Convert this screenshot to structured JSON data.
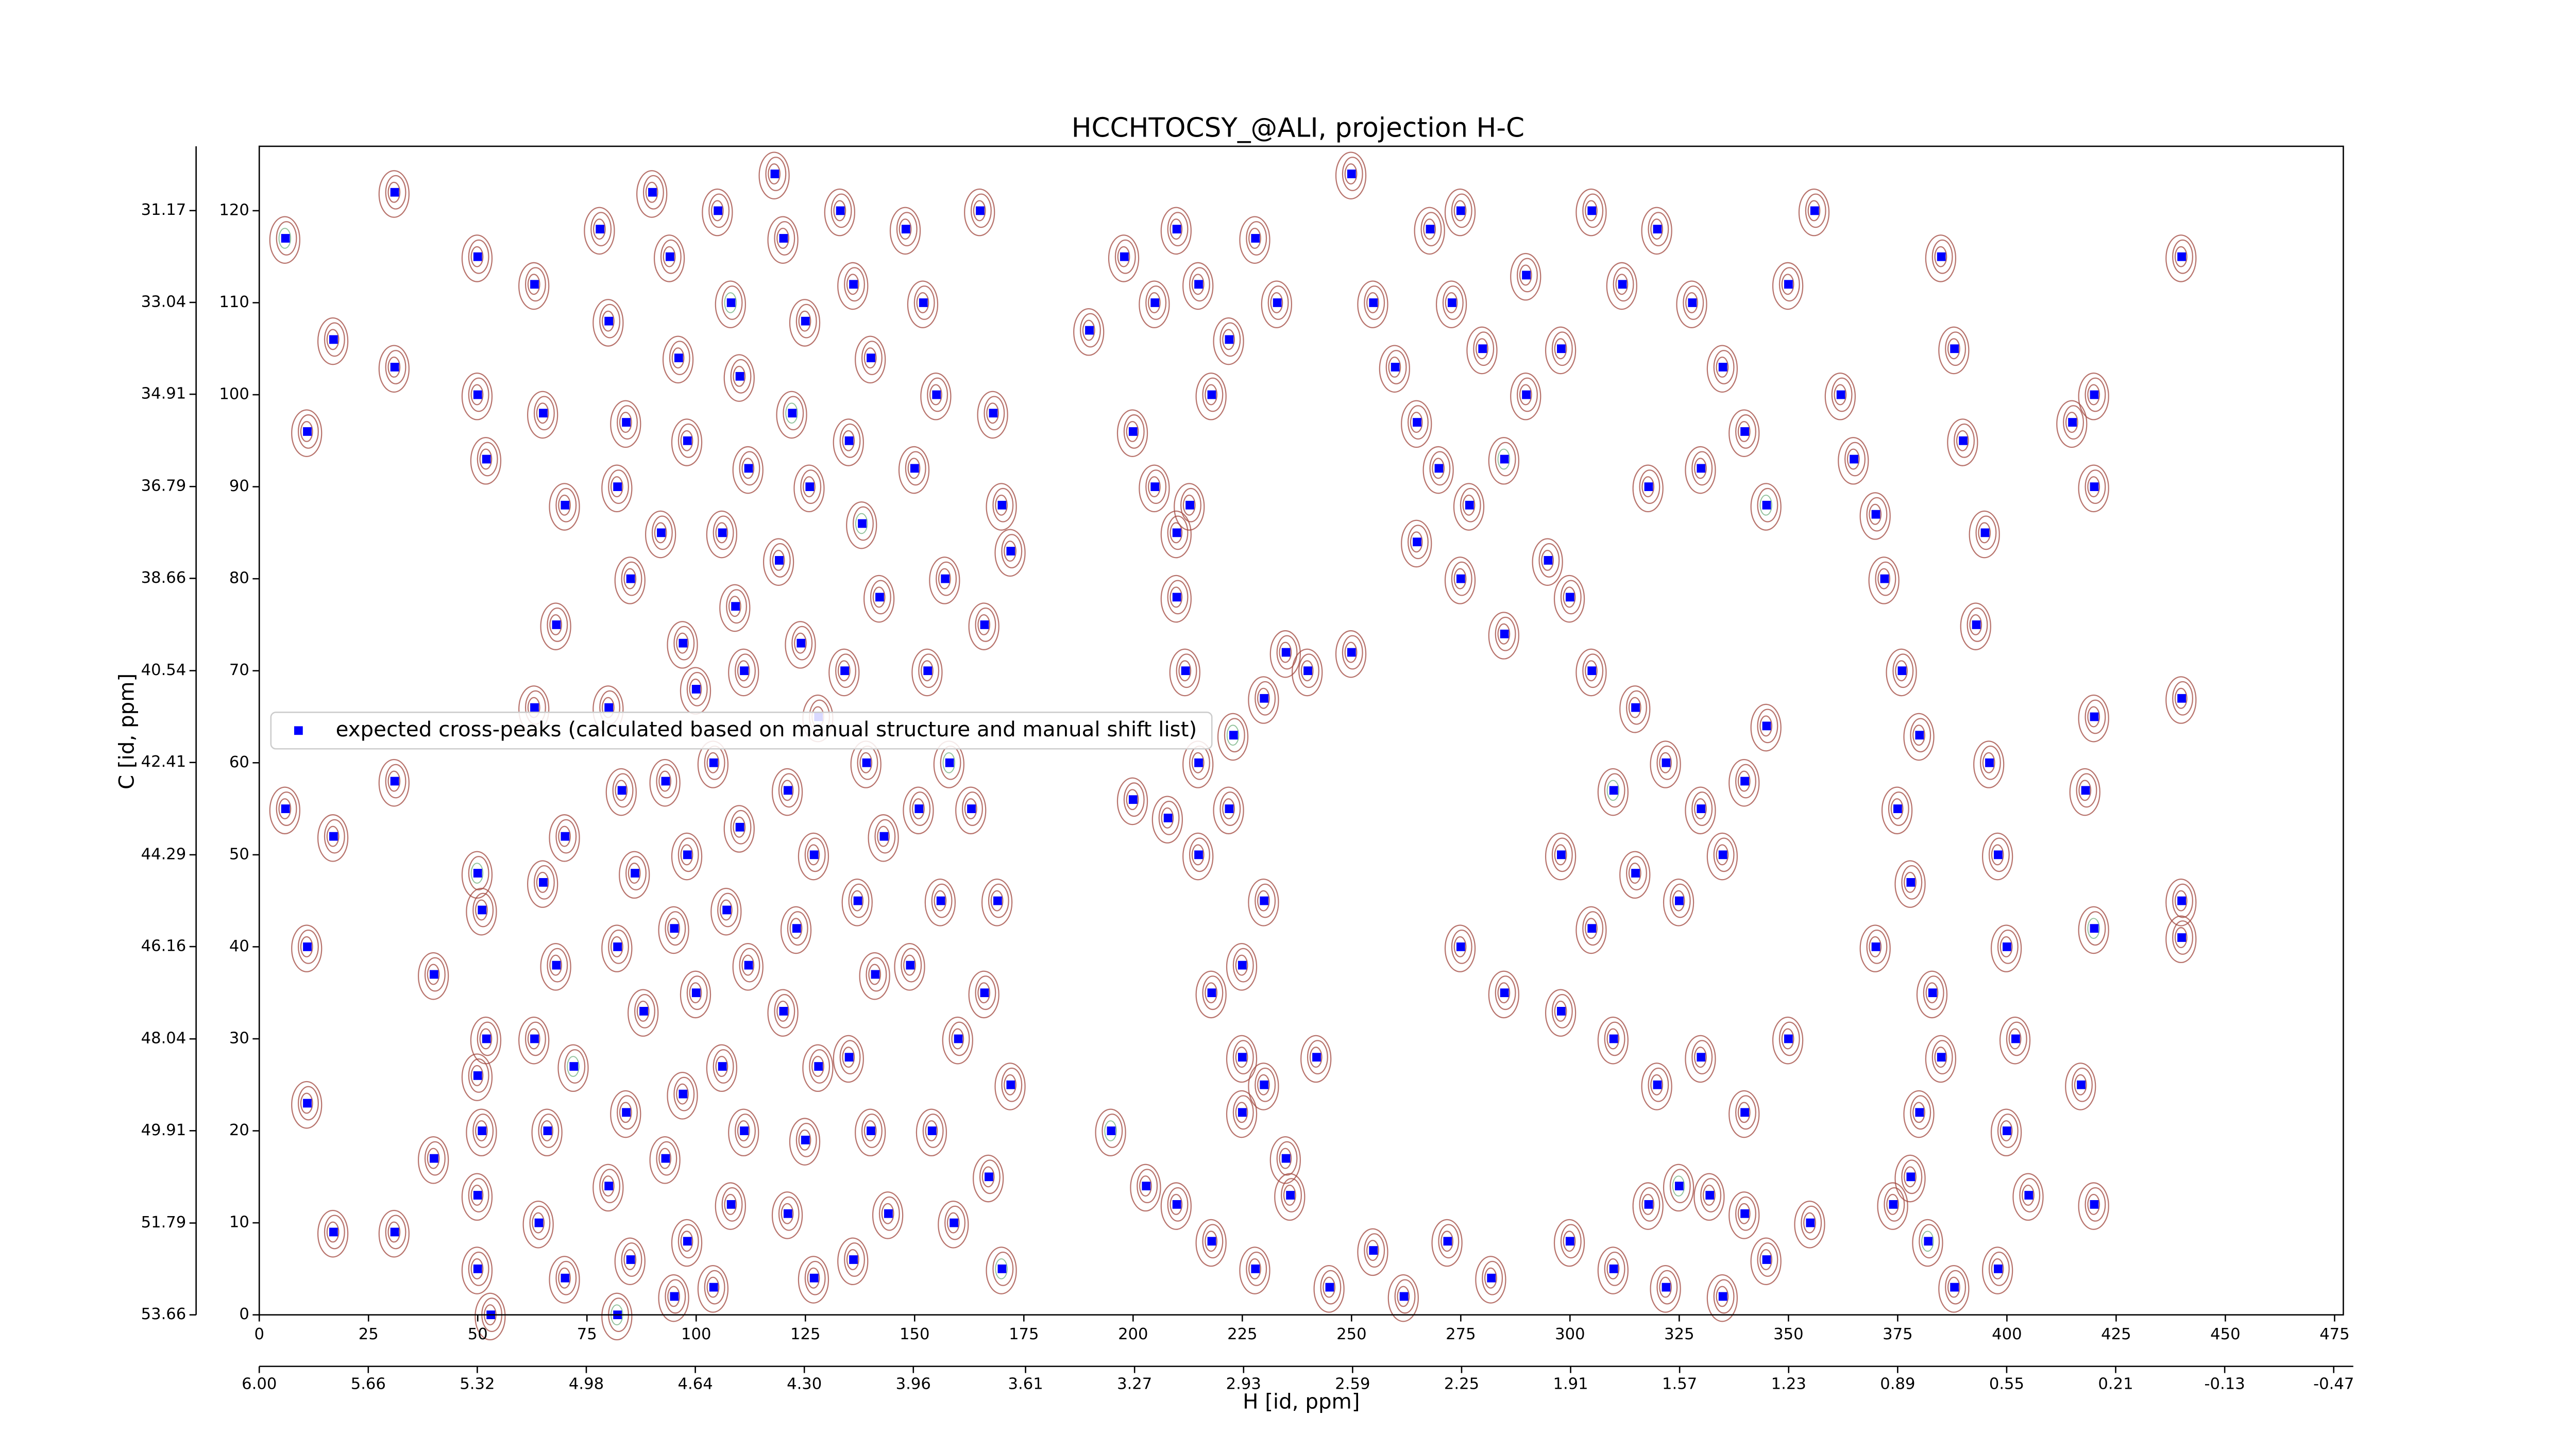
{
  "chart_data": {
    "type": "scatter",
    "title": "HCCHTOCSY_@ALI, projection H-C",
    "x_label": "H [id, ppm]",
    "y_label": "C [id, ppm]",
    "xlim": [
      0,
      477
    ],
    "xticks": [
      0,
      25,
      50,
      75,
      100,
      125,
      150,
      175,
      200,
      225,
      250,
      275,
      300,
      325,
      350,
      375,
      400,
      425,
      450,
      475
    ],
    "x2lim": [
      6.0,
      -0.5
    ],
    "x2ticks": [
      {
        "value": 6.0,
        "label": "6.00"
      },
      5.66,
      5.32,
      4.98,
      4.64,
      {
        "value": 4.3,
        "label": "4.30"
      },
      3.96,
      3.61,
      3.27,
      2.93,
      2.59,
      2.25,
      1.91,
      1.57,
      1.23,
      0.89,
      0.55,
      0.21,
      -0.13,
      -0.47
    ],
    "ylim": [
      0,
      127
    ],
    "yticks": [
      0,
      10,
      20,
      30,
      40,
      50,
      60,
      70,
      80,
      90,
      100,
      110,
      120
    ],
    "y2lim": [
      53.66,
      29.86
    ],
    "y2ticks": [
      53.66,
      51.79,
      49.91,
      48.04,
      46.16,
      44.29,
      42.41,
      40.54,
      38.66,
      36.79,
      34.91,
      33.04,
      31.17
    ],
    "legend": "center left",
    "series": [
      {
        "name": "expected cross-peaks (calculated based on manual structure and manual shift list)",
        "color": "#0000ff",
        "x": [
          6,
          17,
          31,
          11,
          31,
          6,
          17,
          11,
          40,
          11,
          17,
          31,
          31,
          40,
          50,
          50,
          52,
          50,
          51,
          52,
          50,
          51,
          50,
          50,
          53,
          63,
          65,
          70,
          68,
          63,
          70,
          65,
          68,
          63,
          72,
          66,
          64,
          70,
          78,
          80,
          84,
          82,
          85,
          80,
          83,
          86,
          82,
          88,
          84,
          80,
          85,
          82,
          90,
          94,
          96,
          98,
          92,
          97,
          100,
          93,
          98,
          95,
          100,
          97,
          93,
          98,
          95,
          105,
          108,
          110,
          112,
          106,
          109,
          111,
          104,
          110,
          107,
          112,
          106,
          111,
          108,
          104,
          118,
          120,
          125,
          122,
          126,
          119,
          124,
          128,
          121,
          127,
          123,
          120,
          128,
          125,
          121,
          127,
          133,
          136,
          140,
          135,
          138,
          142,
          134,
          139,
          143,
          137,
          141,
          135,
          140,
          144,
          136,
          148,
          152,
          155,
          150,
          157,
          153,
          158,
          151,
          156,
          149,
          160,
          154,
          159,
          165,
          168,
          170,
          172,
          166,
          163,
          169,
          166,
          172,
          167,
          170,
          190,
          200,
          205,
          210,
          213,
          198,
          205,
          210,
          215,
          222,
          228,
          233,
          218,
          210,
          212,
          215,
          223,
          230,
          235,
          240,
          250,
          200,
          208,
          215,
          222,
          230,
          225,
          218,
          225,
          230,
          225,
          235,
          242,
          195,
          203,
          210,
          218,
          228,
          236,
          245,
          255,
          262,
          272,
          282,
          250,
          255,
          260,
          265,
          270,
          277,
          285,
          290,
          280,
          273,
          268,
          275,
          290,
          298,
          265,
          275,
          285,
          295,
          300,
          305,
          315,
          322,
          330,
          310,
          298,
          305,
          315,
          325,
          335,
          340,
          345,
          275,
          285,
          298,
          310,
          320,
          330,
          340,
          350,
          318,
          325,
          332,
          340,
          300,
          310,
          322,
          335,
          345,
          355,
          305,
          312,
          320,
          328,
          335,
          340,
          330,
          318,
          345,
          350,
          356,
          362,
          365,
          370,
          372,
          376,
          380,
          375,
          378,
          370,
          383,
          385,
          380,
          378,
          374,
          382,
          388,
          385,
          388,
          390,
          395,
          393,
          396,
          398,
          400,
          402,
          400,
          405,
          398,
          415,
          420,
          418,
          420,
          417,
          420,
          420,
          440,
          440,
          440,
          440,
          420
        ],
        "values": [
          117,
          106,
          103,
          96,
          122,
          55,
          52,
          40,
          37,
          23,
          9,
          9,
          58,
          17,
          115,
          100,
          93,
          48,
          44,
          30,
          26,
          20,
          13,
          5,
          0,
          112,
          98,
          88,
          75,
          66,
          52,
          47,
          38,
          30,
          27,
          20,
          10,
          4,
          118,
          108,
          97,
          90,
          80,
          66,
          57,
          48,
          40,
          33,
          22,
          14,
          6,
          0,
          122,
          115,
          104,
          95,
          85,
          73,
          68,
          58,
          50,
          42,
          35,
          24,
          17,
          8,
          2,
          120,
          110,
          102,
          92,
          85,
          77,
          70,
          60,
          53,
          44,
          38,
          27,
          20,
          12,
          3,
          124,
          117,
          108,
          98,
          90,
          82,
          73,
          65,
          57,
          50,
          42,
          33,
          27,
          19,
          11,
          4,
          120,
          112,
          104,
          95,
          86,
          78,
          70,
          60,
          52,
          45,
          37,
          28,
          20,
          11,
          6,
          118,
          110,
          100,
          92,
          80,
          70,
          60,
          55,
          45,
          38,
          30,
          20,
          10,
          120,
          98,
          88,
          83,
          75,
          55,
          45,
          35,
          25,
          15,
          5,
          107,
          96,
          90,
          85,
          88,
          115,
          110,
          118,
          112,
          106,
          117,
          110,
          100,
          78,
          70,
          60,
          63,
          67,
          72,
          70,
          72,
          56,
          54,
          50,
          55,
          45,
          38,
          35,
          28,
          25,
          22,
          17,
          28,
          20,
          14,
          12,
          8,
          5,
          13,
          3,
          7,
          2,
          8,
          4,
          124,
          110,
          103,
          97,
          92,
          88,
          93,
          100,
          105,
          110,
          118,
          120,
          113,
          105,
          84,
          80,
          74,
          82,
          78,
          70,
          66,
          60,
          55,
          57,
          50,
          42,
          48,
          45,
          50,
          58,
          64,
          40,
          35,
          33,
          30,
          25,
          28,
          22,
          30,
          12,
          14,
          13,
          11,
          8,
          5,
          3,
          2,
          6,
          10,
          120,
          112,
          118,
          110,
          103,
          96,
          92,
          90,
          88,
          112,
          120,
          100,
          93,
          87,
          80,
          70,
          63,
          55,
          47,
          40,
          35,
          28,
          22,
          15,
          12,
          8,
          3,
          115,
          105,
          95,
          85,
          75,
          60,
          50,
          40,
          30,
          20,
          13,
          5,
          97,
          90,
          57,
          42,
          25,
          12,
          65,
          67,
          45,
          41,
          115,
          100
        ]
      }
    ]
  }
}
